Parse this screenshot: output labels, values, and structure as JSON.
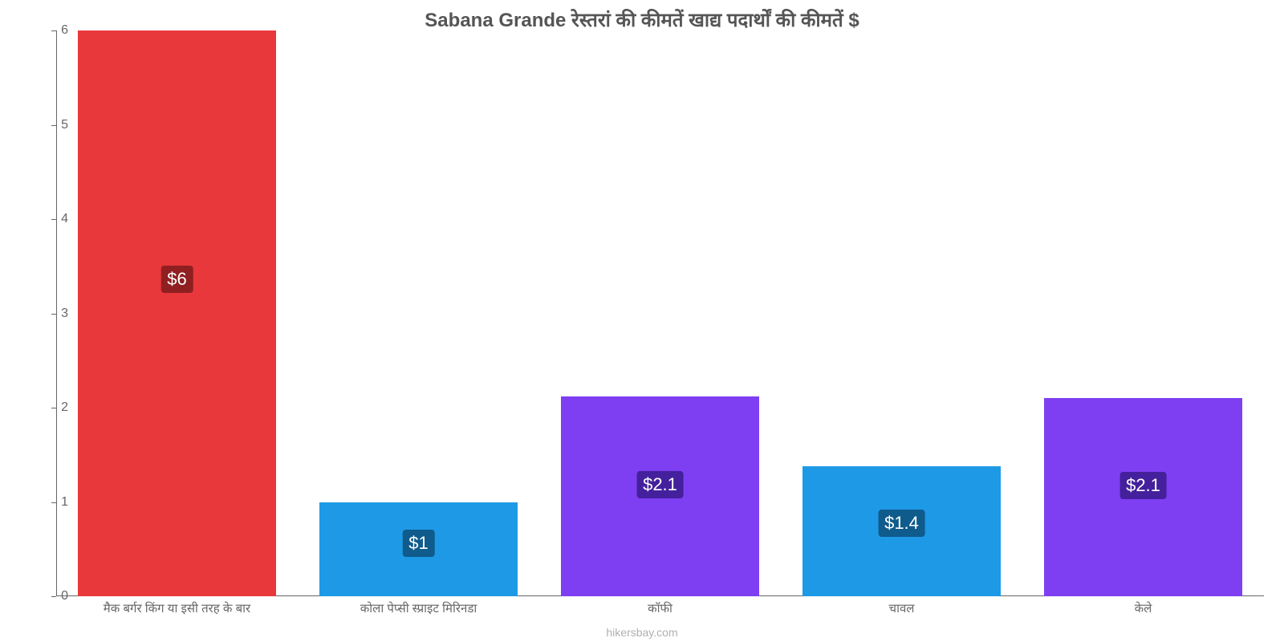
{
  "chart": {
    "type": "bar",
    "title": "Sabana Grande रेस्तरां की कीमतें खाद्य पदार्थों की कीमतें $",
    "title_fontsize": 24,
    "title_color": "#555555",
    "background_color": "#ffffff",
    "axis_color": "#666666",
    "ylim": [
      0,
      6
    ],
    "ytick_step": 1,
    "yticks": [
      {
        "v": 0,
        "label": "0"
      },
      {
        "v": 1,
        "label": "1"
      },
      {
        "v": 2,
        "label": "2"
      },
      {
        "v": 3,
        "label": "3"
      },
      {
        "v": 4,
        "label": "4"
      },
      {
        "v": 5,
        "label": "5"
      },
      {
        "v": 6,
        "label": "6"
      }
    ],
    "tick_fontsize": 16,
    "xticklabel_fontsize": 15,
    "bar_width_ratio": 0.82,
    "bars": [
      {
        "category": "मैक बर्गर किंग या इसी तरह के बार",
        "value": 6.0,
        "display": "$6",
        "color": "#e8383b",
        "label_bg": "#8f1f21"
      },
      {
        "category": "कोला पेप्सी स्प्राइट मिरिनडा",
        "value": 1.0,
        "display": "$1",
        "color": "#1e99e6",
        "label_bg": "#0f5b8c"
      },
      {
        "category": "कॉफी",
        "value": 2.12,
        "display": "$2.1",
        "color": "#7e3ff2",
        "label_bg": "#44209c"
      },
      {
        "category": "चावल",
        "value": 1.38,
        "display": "$1.4",
        "color": "#1e99e6",
        "label_bg": "#0f5b8c"
      },
      {
        "category": "केले",
        "value": 2.1,
        "display": "$2.1",
        "color": "#7e3ff2",
        "label_bg": "#44209c"
      }
    ],
    "value_label_fontsize": 22,
    "watermark": "hikersbay.com",
    "watermark_color": "#b0b0b0",
    "watermark_fontsize": 14
  }
}
